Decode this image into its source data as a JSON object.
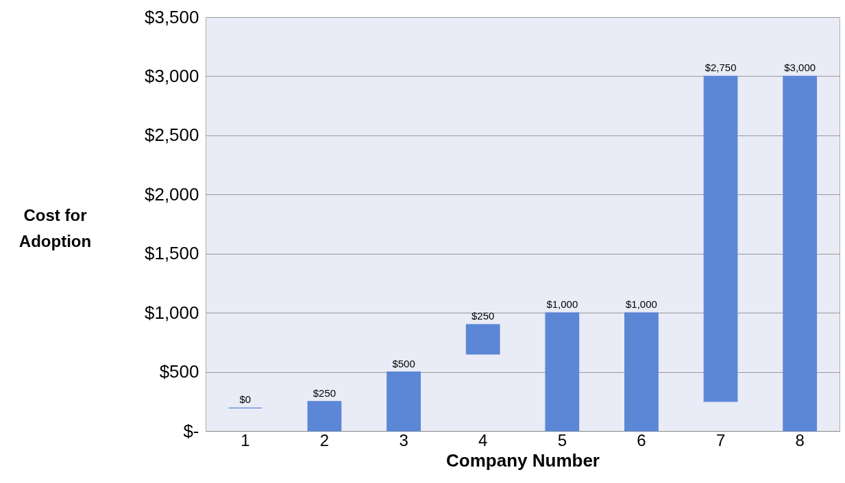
{
  "chart_data": {
    "type": "bar",
    "xlabel": "Company Number",
    "ylabel": "Cost for\nAdoption",
    "categories": [
      "1",
      "2",
      "3",
      "4",
      "5",
      "6",
      "7",
      "8"
    ],
    "base": [
      195,
      0,
      0,
      650,
      0,
      0,
      250,
      0
    ],
    "values": [
      0,
      250,
      500,
      250,
      1000,
      1000,
      2750,
      3000
    ],
    "value_labels": [
      "$0",
      "$250",
      "$500",
      "$250",
      "$1,000",
      "$1,000",
      "$2,750",
      "$3,000"
    ],
    "color": "#5b87d6",
    "ylim": [
      0,
      3500
    ],
    "yticks": [
      {
        "value": 0,
        "label": "$-"
      },
      {
        "value": 500,
        "label": "$500"
      },
      {
        "value": 1000,
        "label": "$1,000"
      },
      {
        "value": 1500,
        "label": "$1,500"
      },
      {
        "value": 2000,
        "label": "$2,000"
      },
      {
        "value": 2500,
        "label": "$2,500"
      },
      {
        "value": 3000,
        "label": "$3,000"
      },
      {
        "value": 3500,
        "label": "$3,500"
      }
    ],
    "grid": "y"
  }
}
